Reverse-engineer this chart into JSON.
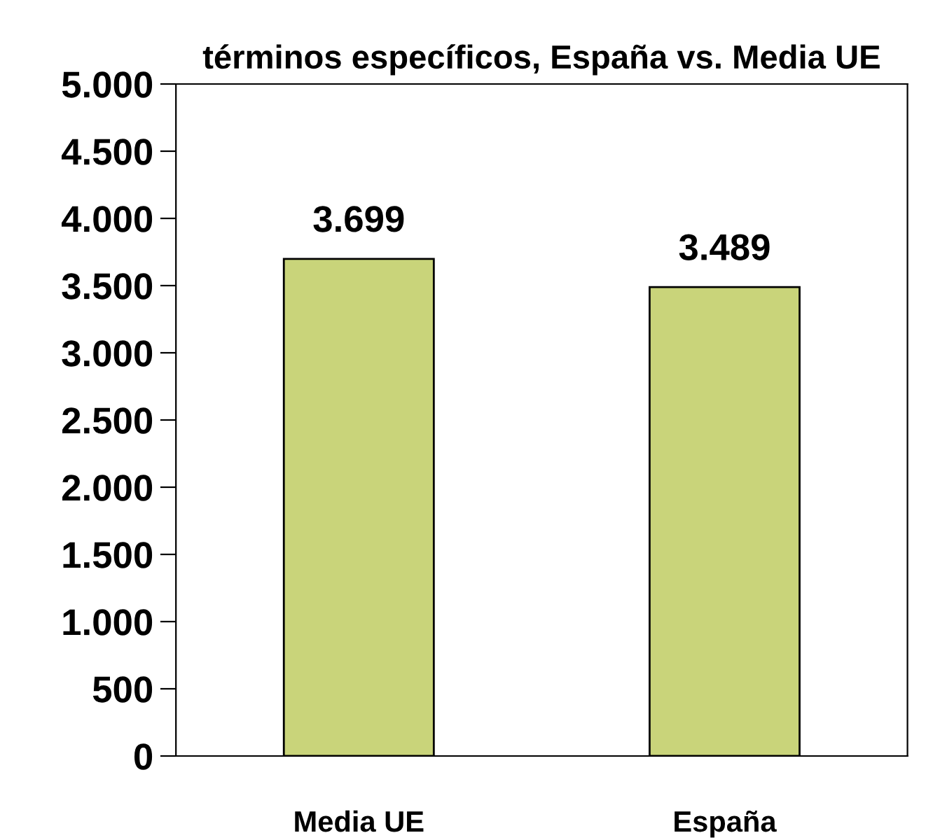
{
  "chart_data": {
    "type": "bar",
    "title": "términos específicos, España vs. Media UE",
    "categories": [
      "Media UE",
      "España"
    ],
    "values": [
      3699,
      3489
    ],
    "value_labels": [
      "3.699",
      "3.489"
    ],
    "color": "#c9d47a",
    "ylim": [
      0,
      5000
    ],
    "yticks": [
      {
        "value": 0,
        "label": "0"
      },
      {
        "value": 500,
        "label": "500"
      },
      {
        "value": 1000,
        "label": "1.000"
      },
      {
        "value": 1500,
        "label": "1.500"
      },
      {
        "value": 2000,
        "label": "2.000"
      },
      {
        "value": 2500,
        "label": "2.500"
      },
      {
        "value": 3000,
        "label": "3.000"
      },
      {
        "value": 3500,
        "label": "3.500"
      },
      {
        "value": 4000,
        "label": "4.000"
      },
      {
        "value": 4500,
        "label": "4.500"
      },
      {
        "value": 5000,
        "label": "5.000"
      }
    ],
    "grid": false
  }
}
